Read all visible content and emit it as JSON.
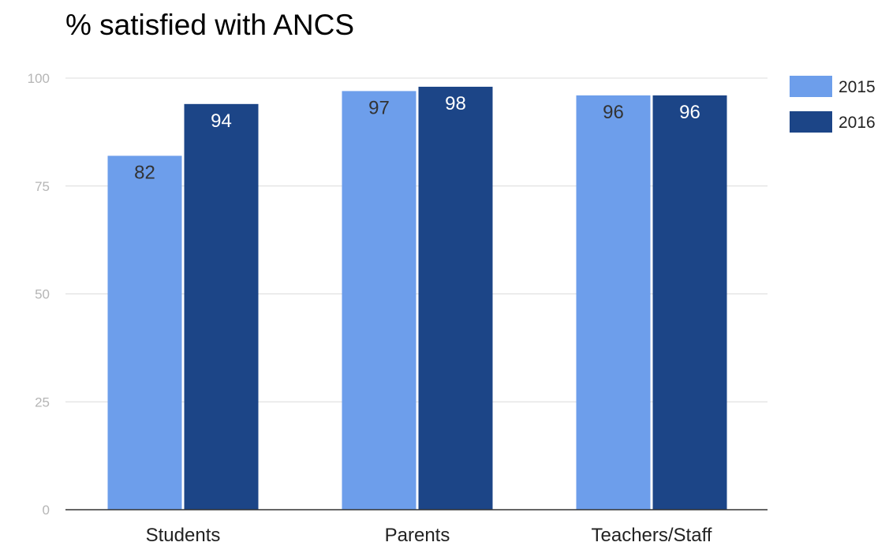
{
  "chart_data": {
    "type": "bar",
    "title": "% satisfied with ANCS",
    "xlabel": "",
    "ylabel": "",
    "categories": [
      "Students",
      "Parents",
      "Teachers/Staff"
    ],
    "series": [
      {
        "name": "2015",
        "values": [
          82,
          97,
          96
        ],
        "value_labels": [
          "82",
          "97",
          "96"
        ],
        "color": "#6d9eeb"
      },
      {
        "name": "2016",
        "values": [
          94,
          98,
          96
        ],
        "value_labels": [
          "94",
          "98",
          "96"
        ],
        "color": "#1c4587"
      }
    ],
    "ylim": [
      0,
      100
    ],
    "yticks": [
      0,
      25,
      50,
      75,
      100
    ],
    "ytick_labels": [
      "0",
      "25",
      "50",
      "75",
      "100"
    ],
    "grid": true,
    "legend_position": "right",
    "data_label_colors": [
      "#333333",
      "#ffffff"
    ]
  }
}
